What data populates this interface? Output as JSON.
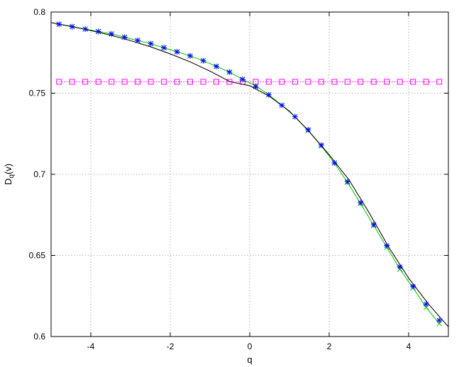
{
  "chart_data": {
    "type": "line",
    "title": "",
    "xlabel": "q",
    "ylabel_main": "D",
    "ylabel_sub": "q",
    "ylabel_suffix": "(v)",
    "xlim": [
      -5,
      5
    ],
    "ylim": [
      0.6,
      0.8
    ],
    "xticks": [
      -4,
      -2,
      0,
      2,
      4
    ],
    "xtick_labels": [
      "-4",
      "-2",
      "0",
      "2",
      "4"
    ],
    "yticks": [
      0.6,
      0.65,
      0.7,
      0.75,
      0.8
    ],
    "ytick_labels": [
      "0.6",
      "0.65",
      "0.7",
      "0.75",
      "0.8"
    ],
    "grid": true,
    "series": [
      {
        "color": "#ff00ff",
        "style": "dotted",
        "marker": "square-open",
        "x": [
          -4.8,
          -4.47,
          -4.14,
          -3.81,
          -3.48,
          -3.15,
          -2.82,
          -2.49,
          -2.16,
          -1.83,
          -1.5,
          -1.17,
          -0.84,
          -0.51,
          -0.18,
          0.15,
          0.48,
          0.81,
          1.14,
          1.47,
          1.8,
          2.13,
          2.46,
          2.79,
          3.12,
          3.45,
          3.78,
          4.11,
          4.44,
          4.77
        ],
        "y": [
          0.757,
          0.757,
          0.757,
          0.757,
          0.757,
          0.757,
          0.757,
          0.757,
          0.757,
          0.757,
          0.757,
          0.757,
          0.757,
          0.757,
          0.757,
          0.757,
          0.757,
          0.757,
          0.757,
          0.757,
          0.757,
          0.757,
          0.757,
          0.757,
          0.757,
          0.757,
          0.757,
          0.757,
          0.757,
          0.757
        ]
      },
      {
        "color": "#ff0000",
        "style": "dotted",
        "marker": "none",
        "x": [
          -5.0,
          -4.5,
          -4.0,
          -3.5,
          -3.0,
          -2.5,
          -2.0,
          -1.5,
          -1.0,
          -0.5,
          0.0,
          0.5,
          1.0,
          1.5,
          2.0,
          2.5,
          3.0,
          3.5,
          4.0,
          4.5,
          5.0
        ],
        "y": [
          0.7935,
          0.7912,
          0.7886,
          0.7857,
          0.7824,
          0.7786,
          0.7742,
          0.7693,
          0.7636,
          0.7571,
          0.7546,
          0.748,
          0.7389,
          0.7262,
          0.712,
          0.6965,
          0.6765,
          0.655,
          0.636,
          0.62,
          0.606
        ]
      },
      {
        "color": "#00c000",
        "style": "solid",
        "marker": "cross",
        "x": [
          -4.8,
          -4.47,
          -4.14,
          -3.81,
          -3.48,
          -3.15,
          -2.82,
          -2.49,
          -2.16,
          -1.83,
          -1.5,
          -1.17,
          -0.84,
          -0.51,
          -0.18,
          0.15,
          0.48,
          0.81,
          1.14,
          1.47,
          1.8,
          2.13,
          2.46,
          2.79,
          3.12,
          3.45,
          3.78,
          4.11,
          4.44,
          4.77
        ],
        "y": [
          0.7925,
          0.791,
          0.7895,
          0.788,
          0.7865,
          0.7845,
          0.7825,
          0.7805,
          0.778,
          0.7755,
          0.773,
          0.77,
          0.7665,
          0.763,
          0.7585,
          0.7545,
          0.749,
          0.7425,
          0.7355,
          0.727,
          0.7175,
          0.707,
          0.695,
          0.682,
          0.6685,
          0.655,
          0.6415,
          0.63,
          0.618,
          0.608
        ]
      },
      {
        "color": "#000000",
        "style": "solid",
        "marker": "none",
        "x": [
          -5.0,
          -4.5,
          -4.0,
          -3.5,
          -3.0,
          -2.5,
          -2.0,
          -1.5,
          -1.0,
          -0.5,
          0.0,
          0.5,
          1.0,
          1.5,
          2.0,
          2.5,
          3.0,
          3.5,
          4.0,
          4.5,
          5.0
        ],
        "y": [
          0.7935,
          0.7912,
          0.7886,
          0.7857,
          0.7824,
          0.7786,
          0.7742,
          0.7693,
          0.7636,
          0.7571,
          0.7546,
          0.748,
          0.7389,
          0.7262,
          0.712,
          0.6965,
          0.6765,
          0.655,
          0.636,
          0.62,
          0.606
        ]
      },
      {
        "color": "#0000ff",
        "style": "none",
        "marker": "star",
        "x": [
          -4.8,
          -4.47,
          -4.14,
          -3.81,
          -3.48,
          -3.15,
          -2.82,
          -2.49,
          -2.16,
          -1.83,
          -1.5,
          -1.17,
          -0.84,
          -0.51,
          -0.18,
          0.15,
          0.48,
          0.81,
          1.14,
          1.47,
          1.8,
          2.13,
          2.46,
          2.79,
          3.12,
          3.45,
          3.78,
          4.11,
          4.44,
          4.77
        ],
        "y": [
          0.7925,
          0.791,
          0.7895,
          0.788,
          0.7865,
          0.7845,
          0.7825,
          0.7805,
          0.778,
          0.7755,
          0.773,
          0.77,
          0.7665,
          0.763,
          0.7585,
          0.754,
          0.749,
          0.7425,
          0.7355,
          0.7275,
          0.718,
          0.707,
          0.6955,
          0.6825,
          0.669,
          0.656,
          0.643,
          0.631,
          0.62,
          0.61
        ]
      }
    ]
  }
}
